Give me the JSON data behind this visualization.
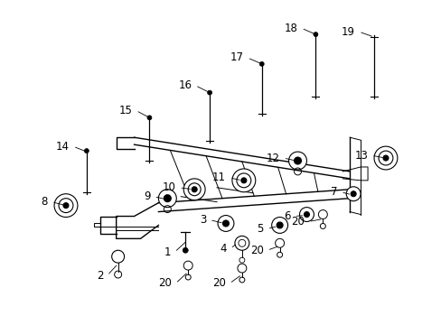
{
  "background_color": "#ffffff",
  "line_color": "#000000",
  "figsize": [
    4.89,
    3.6
  ],
  "dpi": 100,
  "label_fontsize": 8.5,
  "label_fontsize_sm": 7.5
}
